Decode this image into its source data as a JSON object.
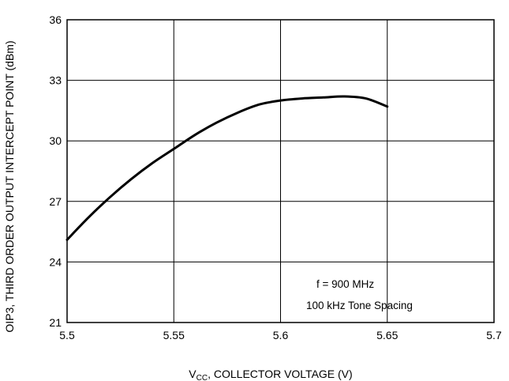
{
  "chart_data": {
    "type": "line",
    "title": "",
    "xlabel": {
      "main": "V",
      "subscript": "CC",
      "rest": ", COLLECTOR VOLTAGE (V)"
    },
    "ylabel": "OIP3, THIRD ORDER OUTPUT INTERCEPT POINT (dBm)",
    "xlim": [
      5.5,
      5.7
    ],
    "ylim": [
      21,
      36
    ],
    "x_ticks": [
      "5.5",
      "5.55",
      "5.6",
      "5.65",
      "5.7"
    ],
    "y_ticks": [
      "21",
      "24",
      "27",
      "30",
      "33",
      "36"
    ],
    "grid": true,
    "annotations": [
      "f = 900 MHz",
      "100 kHz Tone Spacing"
    ],
    "series": [
      {
        "color": "#000000",
        "x": [
          5.5,
          5.51,
          5.52,
          5.53,
          5.54,
          5.55,
          5.56,
          5.57,
          5.58,
          5.59,
          5.6,
          5.61,
          5.62,
          5.63,
          5.64,
          5.65
        ],
        "y": [
          25.1,
          26.2,
          27.2,
          28.1,
          28.9,
          29.6,
          30.3,
          30.9,
          31.4,
          31.8,
          32.0,
          32.1,
          32.15,
          32.2,
          32.1,
          31.7
        ]
      }
    ]
  }
}
